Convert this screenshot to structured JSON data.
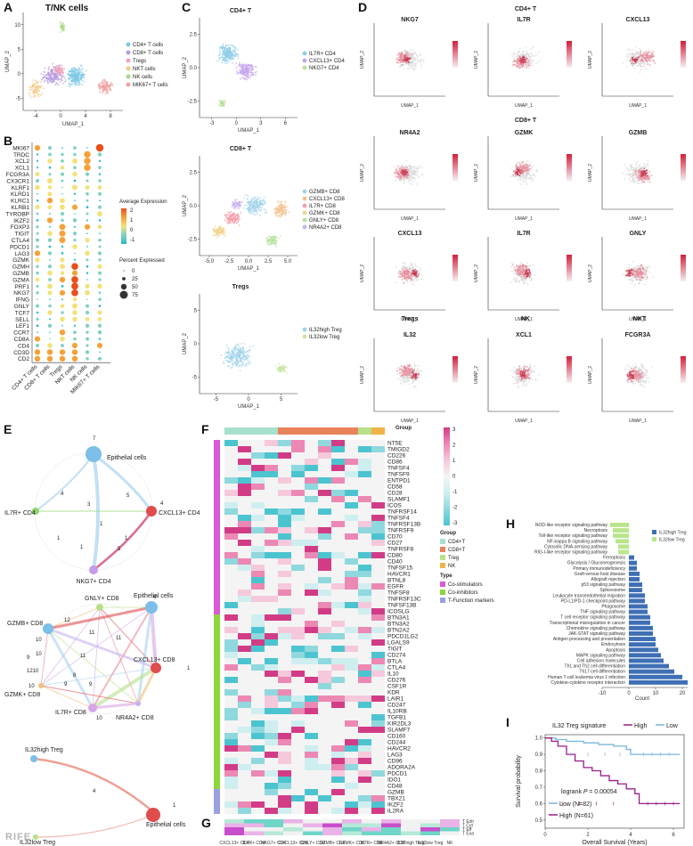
{
  "panels": {
    "A": {
      "label": "A",
      "title": "T/NK cells",
      "xlabel": "UMAP_1",
      "ylabel": "UMAP_2",
      "xticks": [
        "-4",
        "0",
        "4",
        "8"
      ],
      "yticks": [
        "-5",
        "0",
        "5",
        "10"
      ],
      "legend": [
        "CD4+ T cells",
        "CD8+ T cells",
        "Tregs",
        "NKT cells",
        "NK cells",
        "MIK67+ T cells"
      ],
      "colors": [
        "#7cc8e6",
        "#b79be0",
        "#f2a5b4",
        "#f5c98a",
        "#a8d88a",
        "#f0a0a0"
      ]
    },
    "B": {
      "label": "B",
      "genes": [
        "MKI67",
        "TRDC",
        "XCL2",
        "XCL1",
        "FCGR3A",
        "CX3CR1",
        "KLRF1",
        "KLRD1",
        "KLRC1",
        "KLRB1",
        "TYROBP",
        "IKZF2",
        "FOXP3",
        "TIGIT",
        "CTLA4",
        "PDCD1",
        "LAG3",
        "GZMK",
        "GZMH",
        "GZMB",
        "GZMA",
        "PRF1",
        "NKG7",
        "IFNG",
        "GNLY",
        "TCF7",
        "SELL",
        "LEF1",
        "CCR7",
        "CD8A",
        "CD4",
        "CD3D",
        "CD2"
      ],
      "groups": [
        "CD4+ T cells",
        "CD8+ T cells",
        "Tregs",
        "NKT cells",
        "NK cells",
        "MIK67+ T cells"
      ],
      "legend_expr_title": "Average Expression",
      "legend_expr_ticks": [
        "2",
        "1",
        "0",
        "-1"
      ],
      "legend_pct_title": "Percent Expressed",
      "legend_pct_ticks": [
        "0",
        "25",
        "50",
        "75"
      ]
    },
    "C": {
      "label": "C",
      "sub": [
        {
          "title": "CD4+ T",
          "legend": [
            "IL7R+ CD4",
            "CXCL13+ CD4",
            "NKG7+ CD4"
          ],
          "colors": [
            "#8ecde8",
            "#c6a4ec",
            "#b6e09a"
          ],
          "xlabel": "UMAP_1",
          "ylabel": "UMAP_2",
          "xticks": [
            "-3",
            "0",
            "3",
            "6"
          ],
          "yticks": [
            "-2.5",
            "0.0",
            "2.5"
          ]
        },
        {
          "title": "CD8+ T",
          "legend": [
            "GZMB+ CD8",
            "CXCL13+ CD8",
            "IL7R+ CD8",
            "GZMK+ CD8",
            "GNLY+ CD8",
            "NR4A2+ CD8"
          ],
          "colors": [
            "#9fd3ea",
            "#f3c08e",
            "#f5a0a8",
            "#f2d48e",
            "#b4e2a2",
            "#c9b3ee"
          ],
          "xlabel": "UMAP_1",
          "ylabel": "UMAP_2",
          "xticks": [
            "-5.0",
            "-2.5",
            "0.0",
            "2.5",
            "5.0"
          ],
          "yticks": [
            "-2.5",
            "0.0",
            "2.5"
          ]
        },
        {
          "title": "Tregs",
          "legend": [
            "IL32high Treg",
            "IL32low Treg"
          ],
          "colors": [
            "#9fd3ea",
            "#c8e6a0"
          ],
          "xlabel": "UMAP_1",
          "ylabel": "UMAP_2",
          "xticks": [
            "-5",
            "0",
            "5"
          ],
          "yticks": [
            "-5",
            "0",
            "5"
          ]
        }
      ]
    },
    "D": {
      "label": "D",
      "section_titles": [
        "CD4+ T",
        "CD8+ T",
        "Tregs",
        "NK",
        "NKT"
      ],
      "plots": [
        {
          "gene": "NKG7"
        },
        {
          "gene": "IL7R"
        },
        {
          "gene": "CXCL13"
        },
        {
          "gene": "NR4A2"
        },
        {
          "gene": "GZMK"
        },
        {
          "gene": "GZMB"
        },
        {
          "gene": "CXCL13"
        },
        {
          "gene": "IL7R"
        },
        {
          "gene": "GNLY"
        },
        {
          "gene": "IL32"
        },
        {
          "gene": "XCL1"
        },
        {
          "gene": "FCGR3A"
        }
      ],
      "xlabel": "UMAP_1",
      "ylabel": "UMAP_2"
    },
    "E": {
      "label": "E",
      "net1": [
        "Epithelial cells",
        "IL7R+ CD4",
        "CXCL13+ CD4",
        "NKG7+ CD4"
      ],
      "net2": [
        "GNLY+ CD8",
        "Epithelial cells",
        "GZMB+ CD8",
        "CXCL13+ CD8",
        "GZMK+ CD8",
        "IL7R+ CD8",
        "NR4A2+ CD8"
      ],
      "net3": [
        "IL32high Treg",
        "Epithelial cells",
        "IL32low Treg"
      ]
    },
    "F": {
      "label": "F",
      "genes": [
        "NT5E",
        "TMIGD2",
        "CD226",
        "CD86",
        "TNFSF4",
        "TNFSF9",
        "ENTPD1",
        "CD58",
        "CD28",
        "SLAMF1",
        "ICOS",
        "TNFRSF14",
        "TNFSF4",
        "TNFRSF13B",
        "TNFRSF9",
        "CD70",
        "CD27",
        "TNFRSF8",
        "CD80",
        "CD40",
        "TNFSF15",
        "HAVCR1",
        "BTNL8",
        "EGFR",
        "TNFSF8",
        "TNFRSF13C",
        "TNFSF13B",
        "ICOSLG",
        "BTN3A1",
        "BTN3A2",
        "BTN2A2",
        "PDCD1LG2",
        "LGALS9",
        "TIGIT",
        "CD274",
        "BTLA",
        "CTLA4",
        "IL10",
        "CD276",
        "CSF1R",
        "KDR",
        "LAIR1",
        "CD247",
        "IL10RB",
        "TGFB1",
        "KIR2DL3",
        "SLAMF7",
        "CD160",
        "CD244",
        "HAVCR2",
        "LAG3",
        "CD96",
        "ADORA2A",
        "PDCD1",
        "IDO1",
        "CD48",
        "GZMB",
        "TBX21",
        "IKZF2",
        "IL2RA"
      ],
      "legend_ticks": [
        "3",
        "2",
        "1",
        "0",
        "-1",
        "-2",
        "-3"
      ],
      "legend_group_title": "Group",
      "legend_groups": [
        "CD4+T",
        "CD8+T",
        "Treg",
        "NK"
      ],
      "legend_type_title": "Type",
      "legend_types": [
        "Co-stimulators",
        "Co-inhibitors",
        "T-Function markers"
      ],
      "legend_groups_colors": [
        "#a8e0cf",
        "#e8825a",
        "#b8e08a",
        "#f2b24a"
      ],
      "legend_types_colors": [
        "#d85ad6",
        "#8ed63a",
        "#9aa0e0"
      ]
    },
    "G": {
      "label": "G",
      "rows": [
        "T Exh",
        "T Cyt",
        "T Eff",
        "T Exa"
      ],
      "cols": [
        "CXCL13+ CD4",
        "IL7R+ CD4",
        "NKG7+ CD4",
        "CXCL13+ CD8",
        "GNLY+ CD8",
        "GZMB+ CD8",
        "GZMK+ CD8",
        "IL7R+ CD8",
        "NR4A2+ CD8",
        "IL32high Treg",
        "IL32low Treg",
        "NK"
      ],
      "legend_ticks": [
        "2",
        "1",
        "0",
        "-1",
        "-2"
      ]
    },
    "H": {
      "label": "H",
      "xlabel": "Count",
      "xticks": [
        "-10",
        "0",
        "10",
        "20"
      ],
      "legend": [
        "IL32high Treg",
        "IL32low Treg"
      ],
      "bars": [
        {
          "name": "NOD-like receptor signaling pathway",
          "value": -7,
          "group": "low"
        },
        {
          "name": "Necroptosis",
          "value": -6,
          "group": "low"
        },
        {
          "name": "Toll-like receptor signaling pathway",
          "value": -6,
          "group": "low"
        },
        {
          "name": "NF-kappa B signaling pathway",
          "value": -5,
          "group": "low"
        },
        {
          "name": "Cytosolic DNA-sensing pathway",
          "value": -4,
          "group": "low"
        },
        {
          "name": "RIG-I-like receptor signaling pathway",
          "value": -4,
          "group": "low"
        },
        {
          "name": "Ferroptosis",
          "value": 2,
          "group": "high"
        },
        {
          "name": "Glycolysis / Gluconeogenesis",
          "value": 3,
          "group": "high"
        },
        {
          "name": "Primary immunodeficiency",
          "value": 3,
          "group": "high"
        },
        {
          "name": "Graft-versus-host disease",
          "value": 4,
          "group": "high"
        },
        {
          "name": "Allograft rejection",
          "value": 4,
          "group": "high"
        },
        {
          "name": "p53 signaling pathway",
          "value": 5,
          "group": "high"
        },
        {
          "name": "Spliceosome",
          "value": 5,
          "group": "high"
        },
        {
          "name": "Leukocyte transendothelial migration",
          "value": 6,
          "group": "high"
        },
        {
          "name": "PD-L1/PD-1 checkpoint pathway",
          "value": 6,
          "group": "high"
        },
        {
          "name": "Phagosome",
          "value": 7,
          "group": "high"
        },
        {
          "name": "TNF signaling pathway",
          "value": 7,
          "group": "high"
        },
        {
          "name": "T cell receptor signaling pathway",
          "value": 8,
          "group": "high"
        },
        {
          "name": "Transcriptional misregulation in cancer",
          "value": 8,
          "group": "high"
        },
        {
          "name": "Chemokine signaling pathway",
          "value": 9,
          "group": "high"
        },
        {
          "name": "JAK-STAT signaling pathway",
          "value": 9,
          "group": "high"
        },
        {
          "name": "Antigen processing and presentation",
          "value": 10,
          "group": "high"
        },
        {
          "name": "Endocytosis",
          "value": 10,
          "group": "high"
        },
        {
          "name": "Apoptosis",
          "value": 11,
          "group": "high"
        },
        {
          "name": "MAPK signaling pathway",
          "value": 12,
          "group": "high"
        },
        {
          "name": "Cell adhesion molecules",
          "value": 13,
          "group": "high"
        },
        {
          "name": "Th1 and Th2 cell differentiation",
          "value": 15,
          "group": "high"
        },
        {
          "name": "Th17 cell differentiation",
          "value": 17,
          "group": "high"
        },
        {
          "name": "Human T-cell leukemia virus 1 infection",
          "value": 20,
          "group": "high"
        },
        {
          "name": "Cytokine-cytokine receptor interaction",
          "value": 22,
          "group": "high"
        }
      ]
    },
    "I": {
      "label": "I",
      "legend_title": "IL32 Treg signature",
      "legend": [
        "High",
        "Low"
      ],
      "ylabel": "Survival probability",
      "xlabel": "Overall Survival (Years)",
      "xticks": [
        "0",
        "2",
        "4",
        "6"
      ],
      "yticks": [
        "0.5",
        "0.6",
        "0.7",
        "0.8",
        "0.9",
        "1.0"
      ],
      "logrank_label": "logrank",
      "logrank_p_symbol": "P",
      "logrank_value": "= 0.00054",
      "low_n": "Low (N=82)",
      "high_n": "High (N=61)",
      "colors": {
        "high": "#9a1e8a",
        "low": "#7ab6dc"
      }
    }
  },
  "watermark": "RIFE"
}
